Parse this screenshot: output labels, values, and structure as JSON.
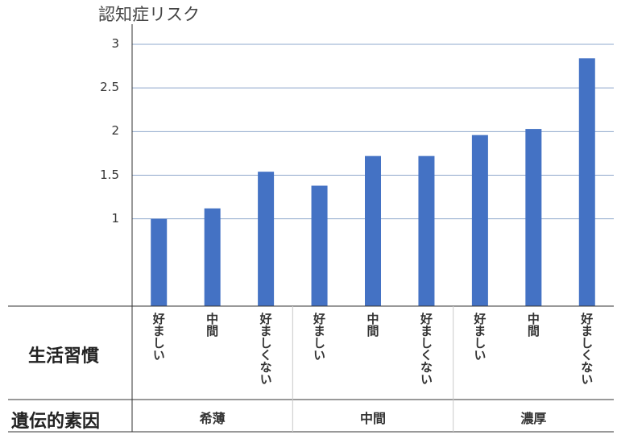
{
  "chart_data": {
    "type": "bar",
    "title": "",
    "ylabel": "認知症リスク",
    "ylim": [
      0,
      3
    ],
    "yticks": [
      "1",
      "1.5",
      "2",
      "2.5",
      "3"
    ],
    "grid": true,
    "color": "#4472C4",
    "categories": [
      "好ましい",
      "中間",
      "好ましくない",
      "好ましい",
      "中間",
      "好ましくない",
      "好ましい",
      "中間",
      "好ましくない"
    ],
    "groups": [
      "希薄",
      "中間",
      "濃厚"
    ],
    "values": [
      1.0,
      1.12,
      1.54,
      1.38,
      1.72,
      1.72,
      1.96,
      2.03,
      2.84
    ]
  },
  "table": {
    "row1_header": "生活習慣",
    "row2_header": "遺伝的素因"
  }
}
